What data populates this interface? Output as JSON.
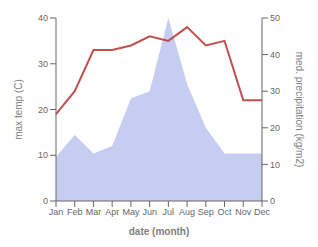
{
  "chart_data": {
    "type": "line",
    "xlabel": "date (month)",
    "ylabel": "max temp (C)",
    "y2label": "med. precipitation (kg/m2)",
    "categories": [
      "Jan",
      "Feb",
      "Mar",
      "Apr",
      "May",
      "Jun",
      "Jul",
      "Aug",
      "Sep",
      "Oct",
      "Nov",
      "Dec"
    ],
    "series": [
      {
        "type": "line",
        "color": "#c0504d",
        "values": [
          19,
          24,
          33,
          33,
          34,
          36,
          35,
          38,
          34,
          35,
          22,
          22
        ]
      },
      {
        "type": "area",
        "color": "#c5cdf0",
        "axis": "y2",
        "values": [
          12,
          18,
          13,
          15,
          28,
          30,
          50,
          32,
          20,
          13,
          13,
          13
        ]
      }
    ],
    "ylim": [
      0,
      40
    ],
    "yticks": [
      0,
      10,
      20,
      30,
      40
    ],
    "y2lim": [
      0,
      50
    ],
    "y2ticks": [
      0,
      10,
      20,
      30,
      40,
      50
    ],
    "grid": false
  }
}
